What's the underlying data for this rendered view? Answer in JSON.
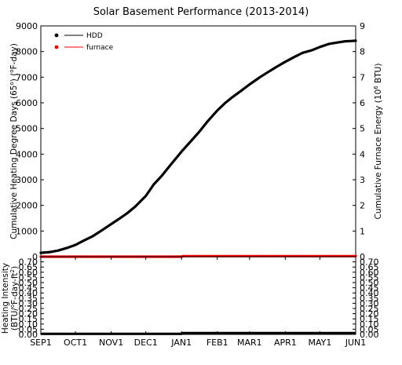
{
  "chart_data": [
    {
      "type": "line",
      "title": "Solar Basement Performance (2013-2014)",
      "ylabel": "Cumulative Heating Degree Days (65°) (°F-day)",
      "ylabel_parts": [
        "Cumulative Heating Degree Days (65",
        "o",
        ") (",
        "o",
        "F-day)"
      ],
      "y2label": "Cumulative Furnace Energy (10^6 BTU)",
      "y2label_parts": [
        "Cumulative Furnace Energy (10",
        "6",
        " BTU)"
      ],
      "ylim": [
        0,
        9000
      ],
      "y2lim": [
        0,
        9
      ],
      "yticks": [
        "0",
        "1000",
        "2000",
        "3000",
        "4000",
        "5000",
        "6000",
        "7000",
        "8000",
        "9000"
      ],
      "y2ticks": [
        "0",
        "1",
        "2",
        "3",
        "4",
        "5",
        "6",
        "7",
        "8",
        "9"
      ],
      "xlim": [
        0,
        273
      ],
      "grid": false,
      "legend_position": "top-left",
      "series": [
        {
          "name": "HDD",
          "color": "#000000",
          "axis": "left",
          "x": [
            0,
            8,
            15,
            22,
            30,
            37,
            45,
            52,
            61,
            68,
            75,
            82,
            91,
            98,
            105,
            112,
            122,
            130,
            137,
            145,
            153,
            160,
            167,
            174,
            181,
            190,
            197,
            205,
            212,
            219,
            227,
            235,
            242,
            250,
            257,
            264,
            268,
            273
          ],
          "y": [
            150,
            180,
            240,
            330,
            460,
            620,
            800,
            1000,
            1270,
            1480,
            1700,
            1960,
            2370,
            2820,
            3160,
            3550,
            4100,
            4500,
            4850,
            5300,
            5700,
            6000,
            6250,
            6480,
            6720,
            7000,
            7200,
            7420,
            7600,
            7770,
            7950,
            8050,
            8180,
            8300,
            8350,
            8400,
            8410,
            8420
          ]
        },
        {
          "name": "furnace",
          "color": "#ff0000",
          "axis": "right",
          "x": [
            0,
            122,
            123,
            273
          ],
          "y": [
            0.0,
            0.0,
            0.02,
            0.02
          ]
        }
      ]
    },
    {
      "type": "line",
      "ylabel": "Heating Intensity (BTU/°F-day-ft²)",
      "ylabel_line1": "Heating Intensity",
      "ylabel_line2_parts": [
        "(BTU/",
        "o",
        "F-day-ft",
        "2",
        ")"
      ],
      "ylim": [
        0,
        0.75
      ],
      "yticks": [
        "0.00",
        "0.05",
        "0.10",
        "0.15",
        "0.20",
        "0.25",
        "0.30",
        "0.35",
        "0.40",
        "0.45",
        "0.50",
        "0.55",
        "0.60",
        "0.65",
        "0.70"
      ],
      "y2ticks": [
        "0.00",
        "0.05",
        "0.10",
        "0.15",
        "0.20",
        "0.25",
        "0.30",
        "0.35",
        "0.40",
        "0.45",
        "0.50",
        "0.55",
        "0.60",
        "0.65",
        "0.70"
      ],
      "xlim": [
        0,
        273
      ],
      "categories": [
        "SEP1",
        "OCT1",
        "NOV1",
        "DEC1",
        "JAN1",
        "FEB1",
        "MAR1",
        "APR1",
        "MAY1",
        "JUN1"
      ],
      "category_x": [
        0,
        30,
        61,
        91,
        122,
        153,
        181,
        212,
        242,
        273
      ],
      "series": [
        {
          "color": "#000000",
          "x": [
            0,
            122,
            123,
            273
          ],
          "y": [
            0.005,
            0.005,
            0.012,
            0.012
          ]
        }
      ]
    }
  ]
}
